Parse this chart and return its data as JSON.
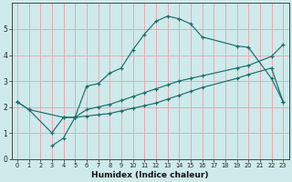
{
  "xlabel": "Humidex (Indice chaleur)",
  "bg_color": "#ceeaea",
  "grid_color": "#e8a8b8",
  "line_color": "#1a6e6a",
  "line1_x": [
    0,
    1,
    3,
    4,
    5,
    6,
    7,
    8,
    9,
    10,
    11,
    12,
    13,
    14,
    15,
    16,
    19,
    20,
    22,
    23
  ],
  "line1_y": [
    2.2,
    1.9,
    1.0,
    1.6,
    1.6,
    2.8,
    2.9,
    3.3,
    3.5,
    4.2,
    4.8,
    5.3,
    5.5,
    5.4,
    5.2,
    4.7,
    4.35,
    4.3,
    3.1,
    2.2
  ],
  "line2_x": [
    0,
    1,
    4,
    5,
    6,
    7,
    8,
    9,
    10,
    11,
    12,
    13,
    14,
    15,
    16,
    19,
    20,
    22,
    23
  ],
  "line2_y": [
    2.2,
    1.9,
    1.6,
    1.6,
    1.9,
    2.0,
    2.1,
    2.25,
    2.4,
    2.55,
    2.7,
    2.85,
    3.0,
    3.1,
    3.2,
    3.5,
    3.6,
    3.95,
    4.4
  ],
  "line3_x": [
    3,
    4,
    5,
    6,
    7,
    8,
    9,
    10,
    11,
    12,
    13,
    14,
    15,
    16,
    19,
    20,
    22,
    23
  ],
  "line3_y": [
    0.5,
    0.8,
    1.6,
    1.65,
    1.7,
    1.75,
    1.85,
    1.95,
    2.05,
    2.15,
    2.3,
    2.45,
    2.6,
    2.75,
    3.1,
    3.25,
    3.5,
    2.2
  ],
  "ylim": [
    0,
    6
  ],
  "xlim": [
    -0.5,
    23.5
  ],
  "yticks": [
    0,
    1,
    2,
    3,
    4,
    5
  ],
  "xticks": [
    0,
    1,
    2,
    3,
    4,
    5,
    6,
    7,
    8,
    9,
    10,
    11,
    12,
    13,
    14,
    15,
    16,
    17,
    18,
    19,
    20,
    21,
    22,
    23
  ]
}
